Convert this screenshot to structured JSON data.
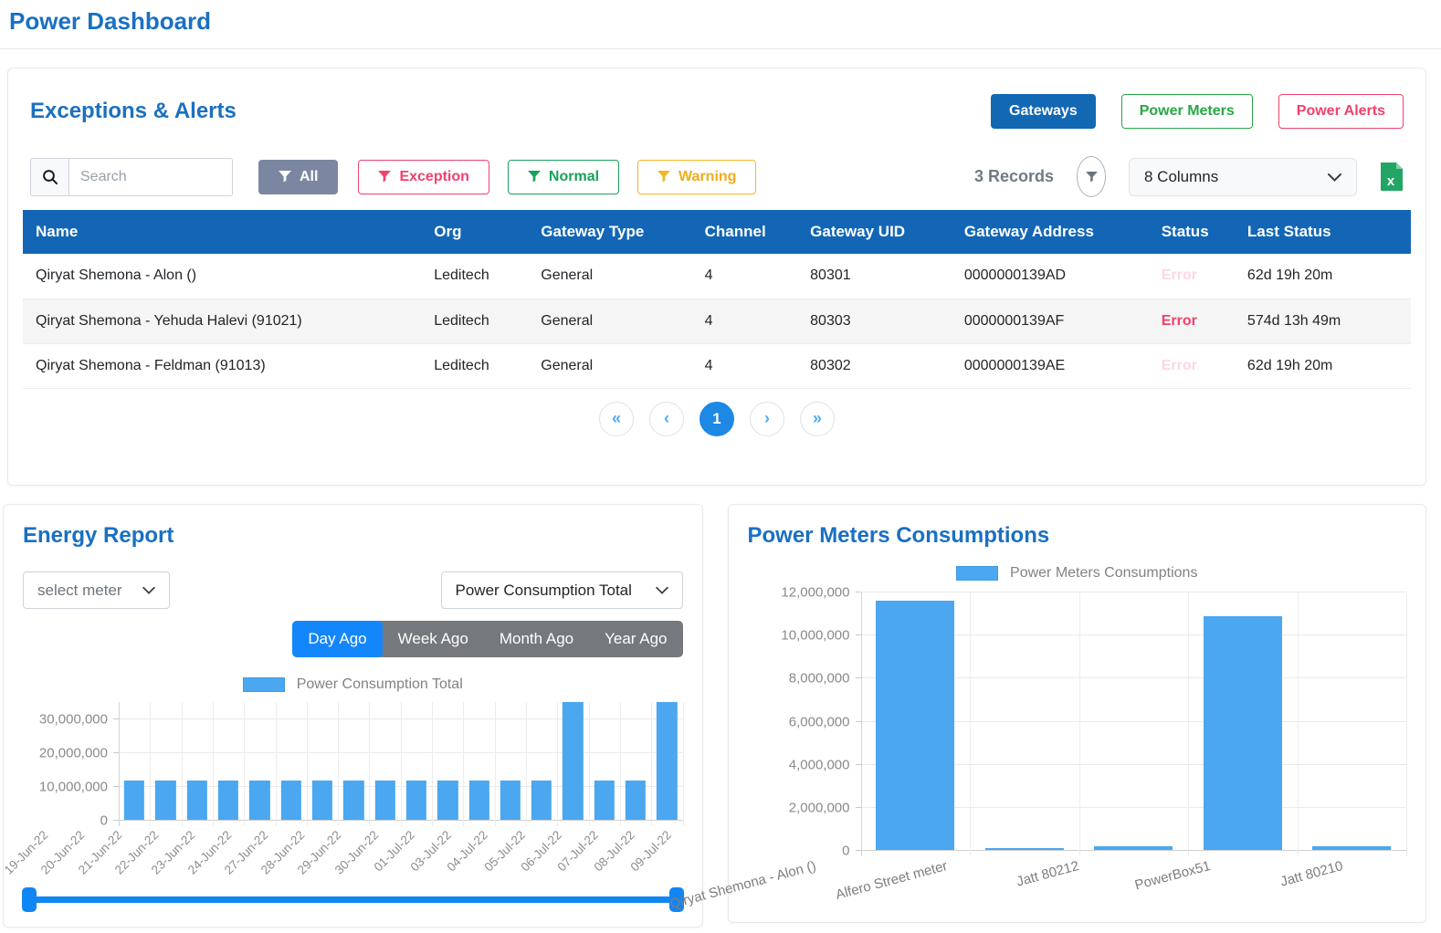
{
  "page": {
    "title": "Power Dashboard"
  },
  "colors": {
    "title_blue": "#1a70c2",
    "table_header_blue": "#1266b5",
    "primary_button_blue": "#1268b3",
    "green": "#28a745",
    "pink": "#f1416c",
    "amber": "#f4b71d",
    "gray_all_button": "#7b87a0",
    "error_strong": "#f43f6b",
    "error_faded": "#fbd7e2",
    "bar_blue": "#4aa7f0",
    "active_tab_blue": "#1486fb",
    "pagination_active_blue": "#1e88e5",
    "slider_blue": "#1086f4"
  },
  "icons": {
    "search-icon": "magnifier",
    "filter-funnel-icon": "funnel",
    "records-filter-icon": "funnel-in-oval",
    "excel-export-icon": "green-sheet-x",
    "chevron-down-icon": "chevron-down",
    "pagination-first-icon": "«",
    "pagination-prev-icon": "‹",
    "pagination-next-icon": "›",
    "pagination-last-icon": "»"
  },
  "exceptions_panel": {
    "title": "Exceptions & Alerts",
    "view_buttons": {
      "gateways": "Gateways",
      "power_meters": "Power Meters",
      "power_alerts": "Power Alerts"
    },
    "toolbar": {
      "search_placeholder": "Search",
      "filters": {
        "all": "All",
        "exception": "Exception",
        "normal": "Normal",
        "warning": "Warning"
      },
      "records_label": "3 Records",
      "columns_label": "8 Columns"
    },
    "table": {
      "columns": [
        "Name",
        "Org",
        "Gateway Type",
        "Channel",
        "Gateway UID",
        "Gateway Address",
        "Status",
        "Last Status"
      ],
      "rows": [
        {
          "name": "Qiryat Shemona - Alon ()",
          "org": "Leditech",
          "gateway_type": "General",
          "channel": "4",
          "gateway_uid": "80301",
          "gateway_address": "0000000139AD",
          "status": "Error",
          "status_faded": true,
          "last_status": "62d 19h 20m"
        },
        {
          "name": "Qiryat Shemona - Yehuda Halevi (91021)",
          "org": "Leditech",
          "gateway_type": "General",
          "channel": "4",
          "gateway_uid": "80303",
          "gateway_address": "0000000139AF",
          "status": "Error",
          "status_faded": false,
          "last_status": "574d 13h 49m"
        },
        {
          "name": "Qiryat Shemona - Feldman (91013)",
          "org": "Leditech",
          "gateway_type": "General",
          "channel": "4",
          "gateway_uid": "80302",
          "gateway_address": "0000000139AE",
          "status": "Error",
          "status_faded": true,
          "last_status": "62d 19h 20m"
        }
      ]
    },
    "pagination": {
      "current_page": "1"
    }
  },
  "energy_report": {
    "title": "Energy Report",
    "meter_select_value": "select meter",
    "metric_select_value": "Power Consumption Total",
    "range_tabs": [
      "Day Ago",
      "Week Ago",
      "Month Ago",
      "Year Ago"
    ],
    "active_tab": "Day Ago",
    "legend_label": "Power Consumption Total"
  },
  "power_meters_panel": {
    "title": "Power Meters Consumptions",
    "legend_label": "Power Meters Consumptions"
  },
  "chart_data": [
    {
      "id": "energy_report_chart",
      "type": "bar",
      "title": "Energy Report",
      "legend": [
        "Power Consumption Total"
      ],
      "legend_position": "top",
      "grid": true,
      "categories": [
        "19-Jun-22",
        "20-Jun-22",
        "21-Jun-22",
        "22-Jun-22",
        "23-Jun-22",
        "24-Jun-22",
        "27-Jun-22",
        "28-Jun-22",
        "29-Jun-22",
        "30-Jun-22",
        "01-Jul-22",
        "03-Jul-22",
        "04-Jul-22",
        "05-Jul-22",
        "06-Jul-22",
        "07-Jul-22",
        "08-Jul-22",
        "09-Jul-22"
      ],
      "values": [
        11500000,
        11500000,
        11500000,
        11500000,
        11500000,
        11500000,
        11500000,
        11500000,
        11500000,
        11500000,
        11500000,
        11500000,
        11500000,
        11500000,
        34800000,
        11500000,
        11500000,
        34800000
      ],
      "ylim": [
        0,
        35000000
      ],
      "yticks": [
        0,
        10000000,
        20000000,
        30000000
      ],
      "xlabel": "",
      "ylabel": "",
      "bar_color": "#4aa7f0",
      "label_rotate": -45,
      "bar_frac": 0.65
    },
    {
      "id": "power_meters_chart",
      "type": "bar",
      "title": "Power Meters Consumptions",
      "legend": [
        "Power Meters Consumptions"
      ],
      "legend_position": "top",
      "grid": true,
      "categories": [
        "Qiryat Shemona - Alon ()",
        "Alfero Street meter",
        "Jatt 80212",
        "PowerBox51",
        "Jatt 80210"
      ],
      "values": [
        11560000,
        70000,
        160000,
        10850000,
        160000
      ],
      "ylim": [
        0,
        12000000
      ],
      "yticks": [
        0,
        2000000,
        4000000,
        6000000,
        8000000,
        10000000,
        12000000
      ],
      "xlabel": "",
      "ylabel": "",
      "bar_color": "#4aa7f0",
      "label_rotate": -15,
      "bar_frac": 0.72
    }
  ]
}
